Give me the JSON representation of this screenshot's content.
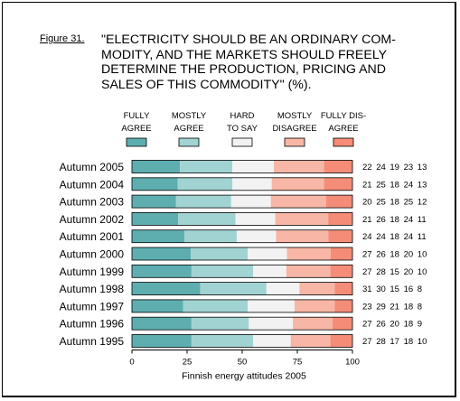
{
  "figure": {
    "label": "Figure 31.",
    "title": "\"ELECTRICITY SHOULD BE AN ORDINARY COM-\nMODITY, AND THE MARKETS SHOULD FREELY\nDETERMINE THE PRODUCTION, PRICING AND\nSALES OF THIS COMMODITY\" (%)."
  },
  "chart_data": {
    "type": "bar",
    "stacked": true,
    "orientation": "horizontal",
    "xlabel": "Finnish energy attitudes 2005",
    "xlim": [
      0,
      100
    ],
    "xticks": [
      0,
      25,
      50,
      75,
      100
    ],
    "categories": [
      "Autumn 2005",
      "Autumn 2004",
      "Autumn 2003",
      "Autumn 2002",
      "Autumn 2001",
      "Autumn 2000",
      "Autumn 1999",
      "Autumn 1998",
      "Autumn 1997",
      "Autumn 1996",
      "Autumn 1995"
    ],
    "series": [
      {
        "name": [
          "FULLY",
          "AGREE"
        ],
        "color": "#5eaeb0",
        "values": [
          22,
          21,
          20,
          21,
          24,
          27,
          27,
          31,
          23,
          27,
          27
        ]
      },
      {
        "name": [
          "MOSTLY",
          "AGREE"
        ],
        "color": "#a2d3d3",
        "values": [
          24,
          25,
          25,
          26,
          24,
          26,
          28,
          30,
          29,
          26,
          28
        ]
      },
      {
        "name": [
          "HARD",
          "TO SAY"
        ],
        "color": "#f2f2f2",
        "values": [
          19,
          18,
          18,
          18,
          18,
          18,
          15,
          15,
          21,
          20,
          17
        ]
      },
      {
        "name": [
          "MOSTLY",
          "DISAGREE"
        ],
        "color": "#f7b6a6",
        "values": [
          23,
          24,
          25,
          24,
          24,
          20,
          20,
          16,
          18,
          18,
          18
        ]
      },
      {
        "name": [
          "FULLY DIS-",
          "AGREE"
        ],
        "color": "#f48c78",
        "values": [
          13,
          13,
          12,
          11,
          11,
          10,
          10,
          8,
          8,
          9,
          10
        ]
      }
    ]
  }
}
